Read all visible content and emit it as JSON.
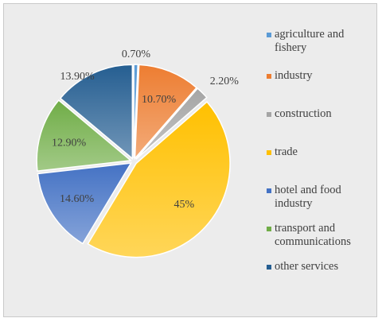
{
  "chart_data": {
    "type": "pie",
    "title": "",
    "legend_position": "right",
    "series": [
      {
        "name": "",
        "slices": [
          {
            "label": "agriculture and fishery",
            "value": 0.7,
            "value_label": "0.70%",
            "color": "#5b9bd5"
          },
          {
            "label": "industry",
            "value": 10.7,
            "value_label": "10.70%",
            "color": "#ed7d31"
          },
          {
            "label": "construction",
            "value": 2.2,
            "value_label": "2.20%",
            "color": "#a5a5a5"
          },
          {
            "label": "trade",
            "value": 45,
            "value_label": "45%",
            "color": "#ffc000"
          },
          {
            "label": "hotel and food industry",
            "value": 14.6,
            "value_label": "14.60%",
            "color": "#4472c4"
          },
          {
            "label": "transport and communications",
            "value": 12.9,
            "value_label": "12.90%",
            "color": "#70ad47"
          },
          {
            "label": "other services",
            "value": 13.9,
            "value_label": "13.90%",
            "color": "#255e91"
          }
        ]
      }
    ]
  }
}
